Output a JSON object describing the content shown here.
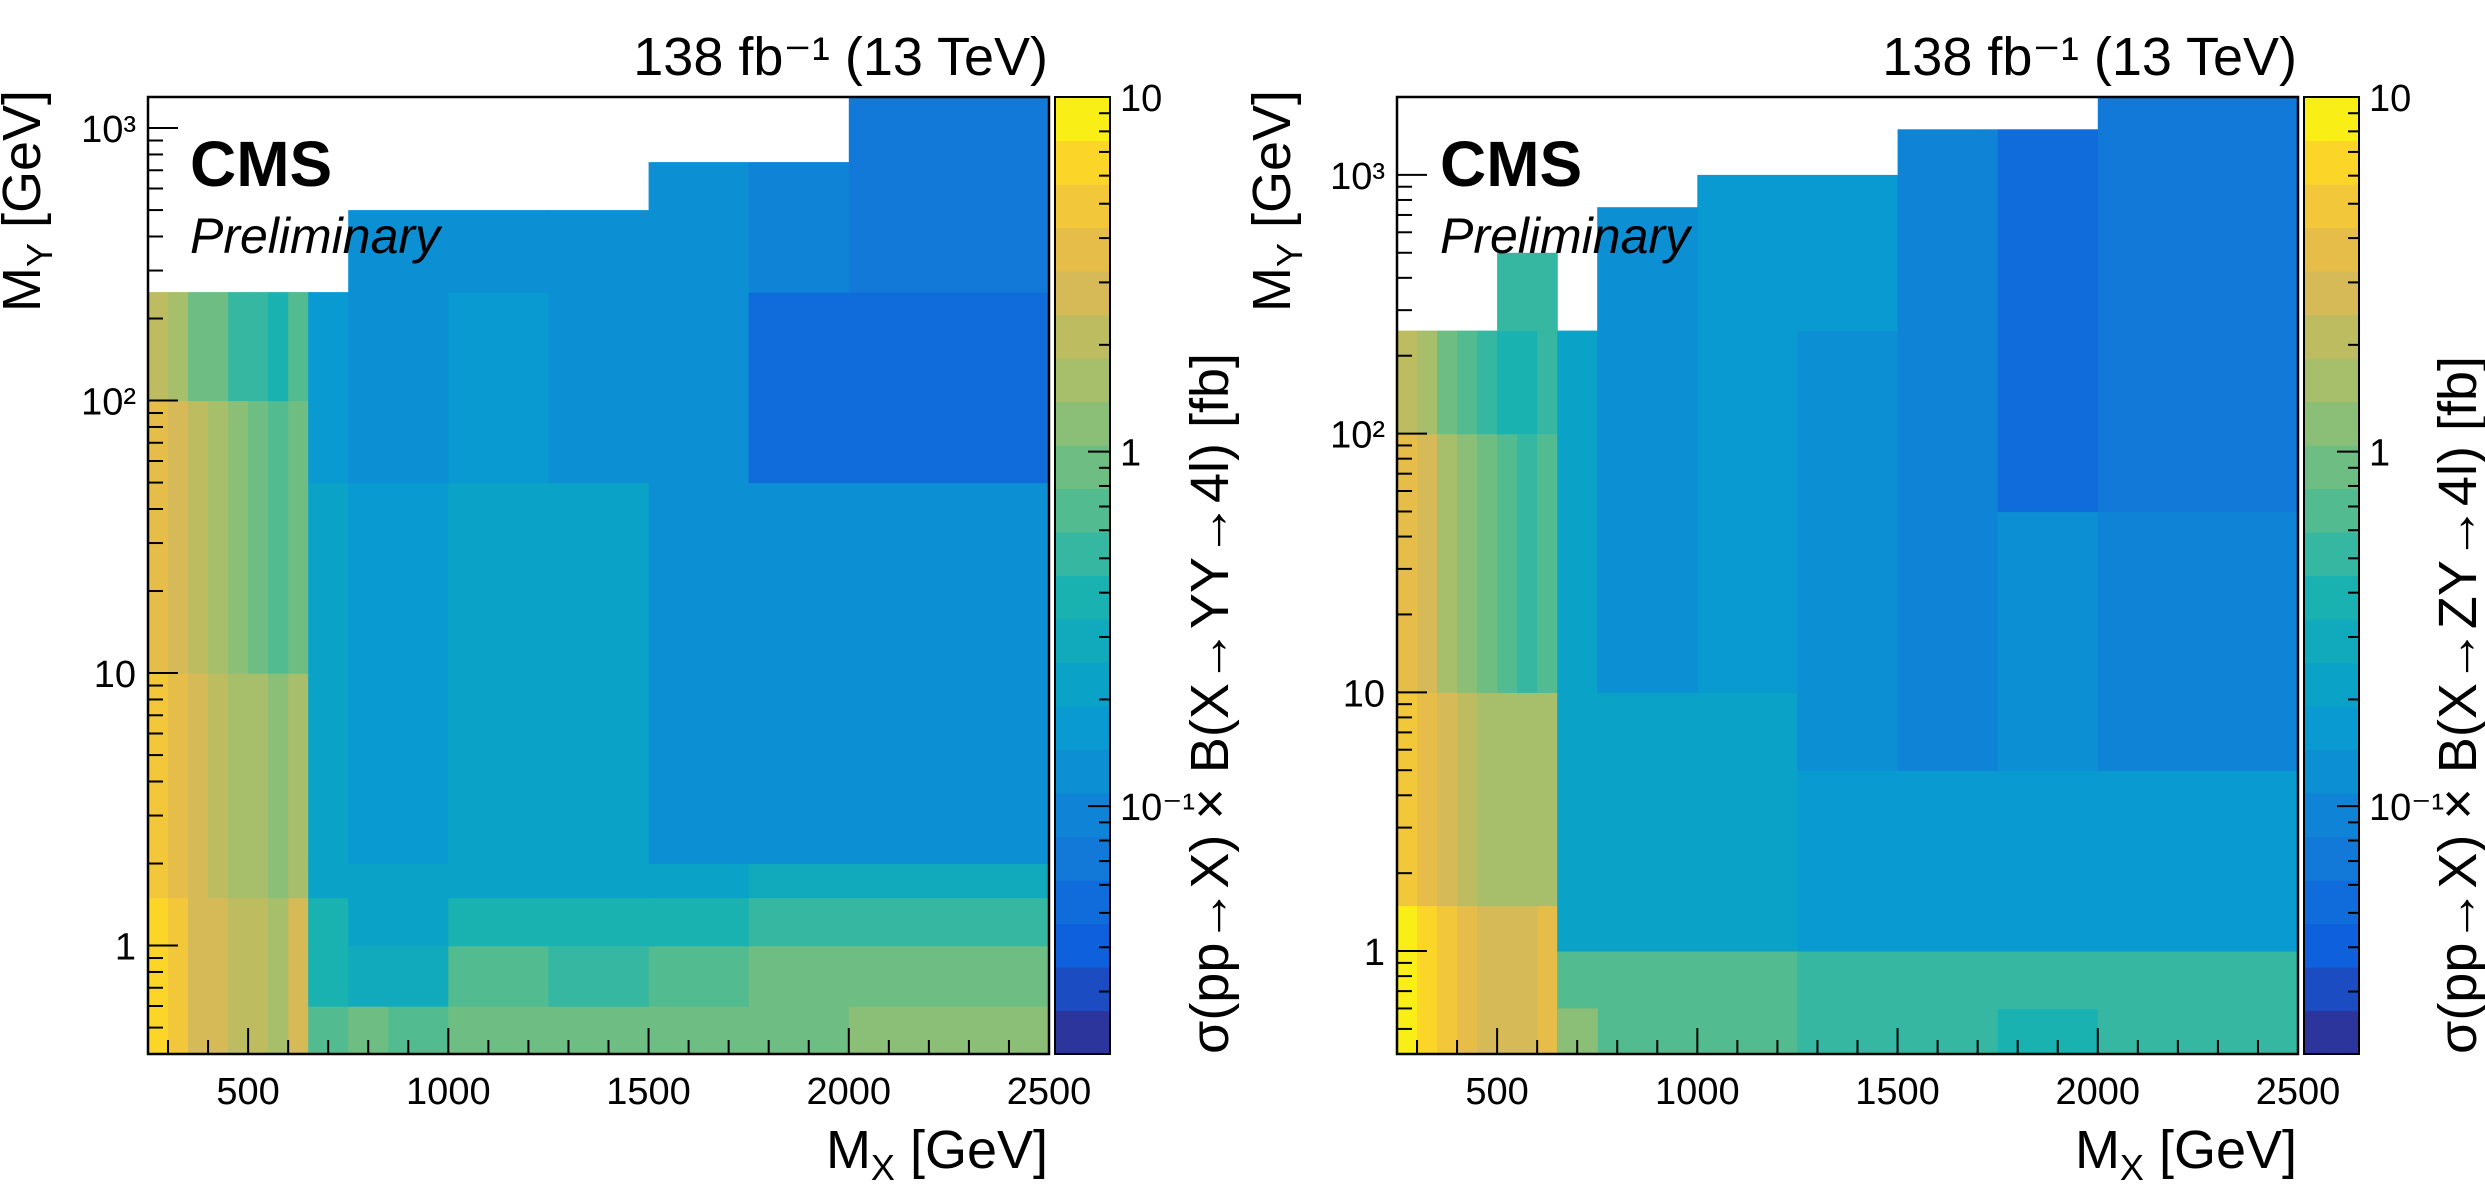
{
  "chart_data": [
    {
      "type": "heatmap",
      "title_right": "138 fb⁻¹ (13 TeV)",
      "experiment": "CMS",
      "status": "Preliminary",
      "xlabel": "M_X [GeV]",
      "ylabel": "M_Y [GeV]",
      "zlabel": "σ(pp→X) × B(X→YY→4l) [fb]",
      "xlim": [
        250,
        2500
      ],
      "ylim": [
        0.4,
        1300
      ],
      "zlim": [
        0.02,
        10
      ],
      "x_ticks": [
        "500",
        "1000",
        "1500",
        "2000",
        "2500"
      ],
      "y_ticks": [
        {
          "v": 1,
          "label": "1"
        },
        {
          "v": 10,
          "label": "10"
        },
        {
          "v": 100,
          "label": "10²"
        },
        {
          "v": 1000,
          "label": "10³"
        }
      ],
      "z_ticks": [
        {
          "v": 0.1,
          "label": "10⁻¹"
        },
        {
          "v": 1,
          "label": "1"
        },
        {
          "v": 10,
          "label": "10"
        }
      ],
      "cells": [
        [
          250,
          300,
          0.4,
          1.5,
          6.5
        ],
        [
          300,
          350,
          0.4,
          1.5,
          4.5
        ],
        [
          350,
          400,
          0.4,
          1.5,
          3.2
        ],
        [
          400,
          450,
          0.4,
          1.5,
          2.5
        ],
        [
          450,
          500,
          0.4,
          1.5,
          2.2
        ],
        [
          500,
          550,
          0.4,
          1.5,
          1.9
        ],
        [
          550,
          600,
          0.4,
          1.5,
          1.8
        ],
        [
          600,
          650,
          0.4,
          1.5,
          2.8
        ],
        [
          250,
          300,
          1.5,
          10,
          4.5
        ],
        [
          300,
          350,
          1.5,
          10,
          3.5
        ],
        [
          350,
          400,
          1.5,
          10,
          2.5
        ],
        [
          400,
          450,
          1.5,
          10,
          2.0
        ],
        [
          450,
          500,
          1.5,
          10,
          1.6
        ],
        [
          500,
          550,
          1.5,
          10,
          1.4
        ],
        [
          550,
          600,
          1.5,
          10,
          1.3
        ],
        [
          600,
          650,
          1.5,
          10,
          1.5
        ],
        [
          250,
          300,
          10,
          100,
          3.5
        ],
        [
          300,
          350,
          10,
          100,
          2.8
        ],
        [
          350,
          400,
          10,
          100,
          2.0
        ],
        [
          400,
          450,
          10,
          100,
          1.5
        ],
        [
          450,
          500,
          10,
          100,
          1.1
        ],
        [
          500,
          550,
          10,
          100,
          0.8
        ],
        [
          550,
          600,
          10,
          100,
          0.6
        ],
        [
          600,
          650,
          10,
          100,
          0.9
        ],
        [
          250,
          300,
          100,
          250,
          2.0
        ],
        [
          300,
          350,
          100,
          250,
          1.5
        ],
        [
          350,
          400,
          100,
          250,
          1.0
        ],
        [
          400,
          450,
          100,
          250,
          0.8
        ],
        [
          450,
          500,
          100,
          250,
          0.5
        ],
        [
          500,
          550,
          100,
          250,
          0.45
        ],
        [
          550,
          600,
          100,
          250,
          0.4
        ],
        [
          600,
          650,
          100,
          250,
          0.6
        ],
        [
          650,
          750,
          0.4,
          0.6,
          0.6
        ],
        [
          750,
          850,
          0.4,
          0.6,
          0.8
        ],
        [
          850,
          1000,
          0.4,
          0.6,
          0.6
        ],
        [
          1000,
          1250,
          0.4,
          0.6,
          0.8
        ],
        [
          1250,
          1500,
          0.4,
          0.6,
          0.8
        ],
        [
          1500,
          1750,
          0.4,
          0.6,
          0.8
        ],
        [
          1750,
          2000,
          0.4,
          0.6,
          1.0
        ],
        [
          2000,
          2500,
          0.4,
          0.6,
          1.1
        ],
        [
          650,
          750,
          0.6,
          1.0,
          0.35
        ],
        [
          750,
          1000,
          0.6,
          1.0,
          0.3
        ],
        [
          1000,
          1250,
          0.6,
          1.0,
          0.6
        ],
        [
          1250,
          1500,
          0.6,
          1.0,
          0.5
        ],
        [
          1500,
          1750,
          0.6,
          1.0,
          0.6
        ],
        [
          1750,
          2000,
          0.6,
          1.0,
          0.8
        ],
        [
          2000,
          2500,
          0.6,
          1.0,
          0.8
        ],
        [
          650,
          750,
          1.0,
          1.5,
          0.35
        ],
        [
          750,
          1000,
          1.0,
          1.5,
          0.25
        ],
        [
          1000,
          1250,
          1.0,
          1.5,
          0.35
        ],
        [
          1250,
          1500,
          1.0,
          1.5,
          0.35
        ],
        [
          1500,
          1750,
          1.0,
          1.5,
          0.4
        ],
        [
          1750,
          2000,
          1.0,
          1.5,
          0.45
        ],
        [
          2000,
          2500,
          1.0,
          1.5,
          0.45
        ],
        [
          650,
          1500,
          1.5,
          2.0,
          0.2
        ],
        [
          1500,
          1750,
          1.5,
          2.0,
          0.2
        ],
        [
          1750,
          2000,
          1.5,
          2.0,
          0.3
        ],
        [
          2000,
          2500,
          1.5,
          2.0,
          0.3
        ],
        [
          650,
          750,
          2,
          50,
          0.2
        ],
        [
          750,
          1000,
          2,
          50,
          0.18
        ],
        [
          1000,
          1250,
          2,
          50,
          0.25
        ],
        [
          1250,
          1500,
          2,
          50,
          0.2
        ],
        [
          1500,
          1750,
          2,
          50,
          0.13
        ],
        [
          1750,
          2000,
          2,
          50,
          0.13
        ],
        [
          2000,
          2500,
          2,
          50,
          0.13
        ],
        [
          650,
          750,
          50,
          250,
          0.18
        ],
        [
          750,
          1000,
          50,
          250,
          0.13
        ],
        [
          1000,
          1250,
          50,
          250,
          0.17
        ],
        [
          1250,
          1500,
          50,
          250,
          0.12
        ],
        [
          1500,
          1750,
          50,
          250,
          0.12
        ],
        [
          1750,
          2000,
          50,
          250,
          0.06
        ],
        [
          2000,
          2500,
          50,
          250,
          0.06
        ],
        [
          750,
          1250,
          250,
          500,
          0.12
        ],
        [
          1250,
          1500,
          250,
          500,
          0.12
        ],
        [
          1500,
          1750,
          250,
          750,
          0.11
        ],
        [
          1750,
          2000,
          250,
          750,
          0.1
        ],
        [
          2000,
          2500,
          250,
          1300,
          0.07
        ]
      ]
    },
    {
      "type": "heatmap",
      "title_right": "138 fb⁻¹ (13 TeV)",
      "experiment": "CMS",
      "status": "Preliminary",
      "xlabel": "M_X [GeV]",
      "ylabel": "M_Y [GeV]",
      "zlabel": "σ(pp→X) × B(X→ZY→4l) [fb]",
      "xlim": [
        250,
        2500
      ],
      "ylim": [
        0.4,
        2000
      ],
      "zlim": [
        0.02,
        10
      ],
      "x_ticks": [
        "500",
        "1000",
        "1500",
        "2000",
        "2500"
      ],
      "y_ticks": [
        {
          "v": 1,
          "label": "1"
        },
        {
          "v": 10,
          "label": "10"
        },
        {
          "v": 100,
          "label": "10²"
        },
        {
          "v": 1000,
          "label": "10³"
        }
      ],
      "z_ticks": [
        {
          "v": 0.1,
          "label": "10⁻¹"
        },
        {
          "v": 1,
          "label": "1"
        },
        {
          "v": 10,
          "label": "10"
        }
      ],
      "cells": [
        [
          250,
          300,
          0.4,
          1.5,
          8.0
        ],
        [
          300,
          350,
          0.4,
          1.5,
          6.0
        ],
        [
          350,
          400,
          0.4,
          1.5,
          4.5
        ],
        [
          400,
          450,
          0.4,
          1.5,
          3.8
        ],
        [
          450,
          500,
          0.4,
          1.5,
          3.2
        ],
        [
          500,
          550,
          0.4,
          1.5,
          2.8
        ],
        [
          550,
          600,
          0.4,
          1.5,
          2.6
        ],
        [
          600,
          650,
          0.4,
          1.5,
          4.0
        ],
        [
          250,
          300,
          1.5,
          10,
          5.0
        ],
        [
          300,
          350,
          1.5,
          10,
          3.8
        ],
        [
          350,
          400,
          1.5,
          10,
          2.8
        ],
        [
          400,
          450,
          1.5,
          10,
          2.2
        ],
        [
          450,
          500,
          1.5,
          10,
          1.6
        ],
        [
          500,
          550,
          1.5,
          10,
          1.4
        ],
        [
          550,
          600,
          1.5,
          10,
          1.5
        ],
        [
          600,
          650,
          1.5,
          10,
          1.7
        ],
        [
          250,
          300,
          10,
          100,
          3.5
        ],
        [
          300,
          350,
          10,
          100,
          2.6
        ],
        [
          350,
          400,
          10,
          100,
          1.8
        ],
        [
          400,
          450,
          10,
          100,
          1.3
        ],
        [
          450,
          500,
          10,
          100,
          0.9
        ],
        [
          500,
          550,
          10,
          100,
          0.7
        ],
        [
          550,
          600,
          10,
          100,
          0.5
        ],
        [
          600,
          650,
          10,
          100,
          0.7
        ],
        [
          250,
          300,
          100,
          250,
          2.0
        ],
        [
          300,
          350,
          100,
          250,
          1.5
        ],
        [
          350,
          400,
          100,
          250,
          1.0
        ],
        [
          400,
          450,
          100,
          250,
          0.7
        ],
        [
          450,
          500,
          100,
          250,
          0.45
        ],
        [
          500,
          550,
          100,
          250,
          0.4
        ],
        [
          550,
          600,
          100,
          250,
          0.35
        ],
        [
          600,
          650,
          100,
          250,
          0.45
        ],
        [
          500,
          650,
          250,
          500,
          0.55
        ],
        [
          650,
          1250,
          0.4,
          1.0,
          0.6
        ],
        [
          650,
          750,
          0.4,
          0.6,
          1.1
        ],
        [
          1250,
          1500,
          0.4,
          1.0,
          0.45
        ],
        [
          1500,
          1750,
          0.4,
          1.0,
          0.45
        ],
        [
          1750,
          2000,
          0.4,
          0.6,
          0.35
        ],
        [
          1750,
          2000,
          0.6,
          1.0,
          0.45
        ],
        [
          2000,
          2500,
          0.4,
          1.0,
          0.45
        ],
        [
          650,
          1000,
          1.0,
          10,
          0.2
        ],
        [
          1000,
          1250,
          1.0,
          10,
          0.25
        ],
        [
          1250,
          1500,
          1.0,
          5,
          0.18
        ],
        [
          1500,
          1750,
          1.0,
          5,
          0.15
        ],
        [
          1750,
          2000,
          1.0,
          5,
          0.15
        ],
        [
          2000,
          2500,
          1.0,
          5,
          0.18
        ],
        [
          650,
          750,
          10,
          250,
          0.2
        ],
        [
          750,
          850,
          10,
          250,
          0.14
        ],
        [
          850,
          1000,
          10,
          250,
          0.14
        ],
        [
          1000,
          1250,
          10,
          250,
          0.17
        ],
        [
          1250,
          1500,
          5,
          250,
          0.12
        ],
        [
          1500,
          1750,
          5,
          250,
          0.1
        ],
        [
          1750,
          2000,
          5,
          50,
          0.12
        ],
        [
          2000,
          2500,
          5,
          50,
          0.1
        ],
        [
          750,
          1000,
          250,
          750,
          0.12
        ],
        [
          1000,
          1250,
          250,
          1000,
          0.18
        ],
        [
          1250,
          1500,
          250,
          1000,
          0.18
        ],
        [
          1500,
          1750,
          250,
          1500,
          0.1
        ],
        [
          1750,
          2000,
          50,
          1500,
          0.06
        ],
        [
          2000,
          2500,
          50,
          2000,
          0.08
        ]
      ]
    }
  ]
}
